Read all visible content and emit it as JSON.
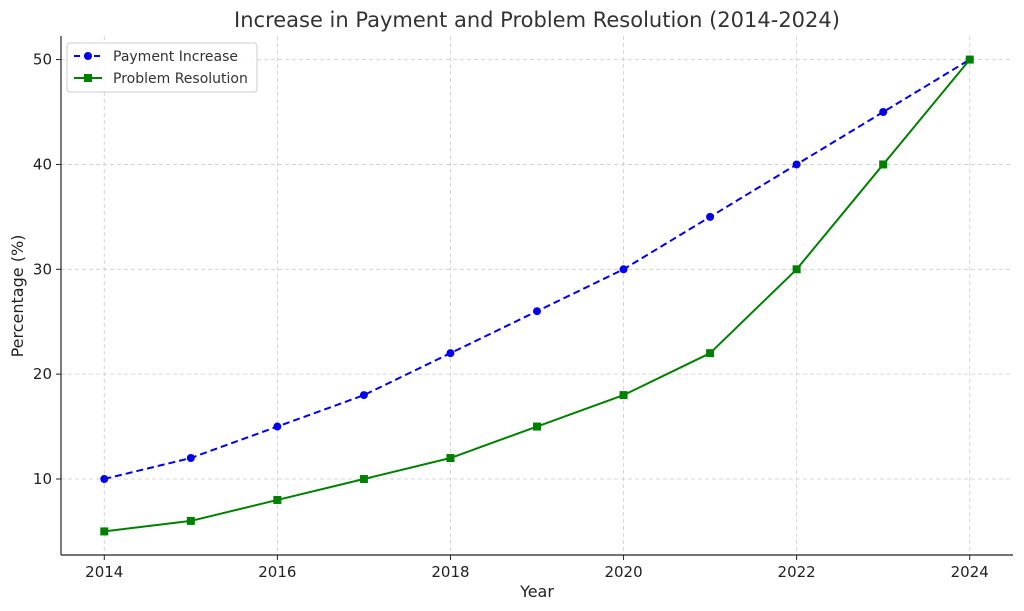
{
  "chart_data": {
    "type": "line",
    "title": "Increase in Payment and Problem Resolution (2014-2024)",
    "xlabel": "Year",
    "ylabel": "Percentage (%)",
    "x": [
      2014,
      2015,
      2016,
      2017,
      2018,
      2019,
      2020,
      2021,
      2022,
      2023,
      2024
    ],
    "xlim": [
      2013.5,
      2024.5
    ],
    "ylim": [
      2.75,
      52.25
    ],
    "xticks": [
      "2014",
      "2016",
      "2018",
      "2020",
      "2022",
      "2024"
    ],
    "yticks": [
      "10",
      "20",
      "30",
      "40",
      "50"
    ],
    "grid": true,
    "legend_position": "top-left",
    "series": [
      {
        "name": "Payment Increase",
        "values": [
          10,
          12,
          15,
          18,
          22,
          26,
          30,
          35,
          40,
          45,
          50
        ],
        "color": "#0000ee",
        "line_style": "dashed",
        "marker": "circle"
      },
      {
        "name": "Problem Resolution",
        "values": [
          5,
          6,
          8,
          10,
          12,
          15,
          18,
          22,
          30,
          40,
          50
        ],
        "color": "#008000",
        "line_style": "solid",
        "marker": "square"
      }
    ]
  }
}
